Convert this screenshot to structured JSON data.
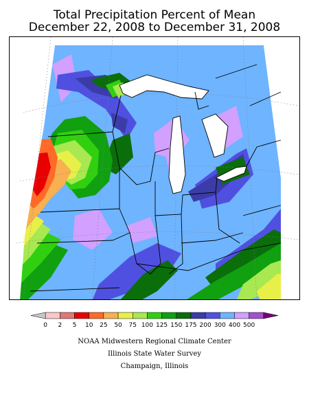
{
  "header": {
    "title": "Total Precipitation Percent of Mean",
    "date_range": "December 22, 2008 to December 31, 2008"
  },
  "legend": {
    "labels": [
      "0",
      "2",
      "5",
      "10",
      "25",
      "50",
      "75",
      "100",
      "125",
      "150",
      "175",
      "200",
      "300",
      "400",
      "500"
    ],
    "colors": [
      "#c8c8c8",
      "#fac8c8",
      "#e07878",
      "#e80000",
      "#ff6a28",
      "#f8b050",
      "#e8f048",
      "#a8e850",
      "#30d010",
      "#10a010",
      "#0a6e0a",
      "#3c3ca8",
      "#5050e0",
      "#6eb4ff",
      "#d2a0ff",
      "#a050d0",
      "#780078"
    ]
  },
  "credits": {
    "line1": "NOAA Midwestern Regional Climate Center",
    "line2": "Illinois State Water Survey",
    "line3": "Champaign, Illinois"
  },
  "map": {
    "region": "Midwestern United States",
    "colors": {
      "light_blue": "#6eb4ff",
      "lavender": "#d2a0ff",
      "blue": "#5050e0",
      "dark_blue": "#3c3ca8",
      "dark_green": "#0a6e0a",
      "green": "#10a010",
      "bright_green": "#30d010",
      "yellow_green": "#a8e850",
      "yellow": "#e8f048",
      "orange": "#f8b050",
      "red_orange": "#ff6a28",
      "red": "#e80000",
      "boundary": "#000000"
    }
  }
}
